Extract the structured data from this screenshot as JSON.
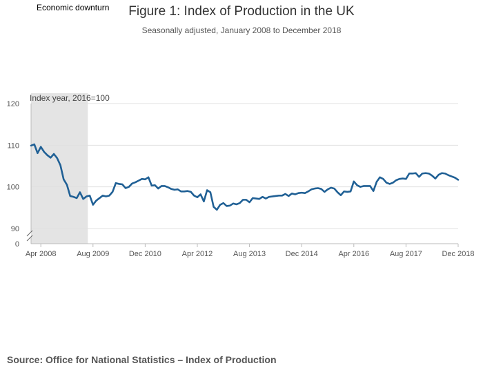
{
  "legend": {
    "label": "Economic downturn",
    "color": "#e4e4e4"
  },
  "source": "Source: Office for National Statistics – Index of Production",
  "chart_data": {
    "type": "line",
    "title": "Figure 1: Index of Production in the UK",
    "subtitle": "Seasonally adjusted, January 2008 to December 2018",
    "ylabel": "Index year, 2016=100",
    "y_ticks": [
      "0",
      "90",
      "100",
      "110",
      "120"
    ],
    "ylim": [
      90,
      120
    ],
    "axis_break": true,
    "grid": true,
    "x_tick_labels": [
      "Apr 2008",
      "Aug 2009",
      "Dec 2010",
      "Apr 2012",
      "Aug 2013",
      "Dec 2014",
      "Apr 2016",
      "Aug 2017",
      "Dec 2018"
    ],
    "x_ticks": [
      "2008-04",
      "2009-08",
      "2010-12",
      "2012-04",
      "2013-08",
      "2014-12",
      "2016-04",
      "2017-08",
      "2018-12"
    ],
    "shaded_regions": [
      {
        "name": "Economic downturn",
        "from": "2008-01",
        "to": "2009-06"
      }
    ],
    "series": [
      {
        "color": "#206095",
        "start": "2008-01",
        "frequency": "monthly",
        "values": [
          109.9,
          110.2,
          108.1,
          109.6,
          108.4,
          107.6,
          107.0,
          107.9,
          106.9,
          105.2,
          101.8,
          100.5,
          97.8,
          97.6,
          97.3,
          98.7,
          97.1,
          97.7,
          97.9,
          95.7,
          96.7,
          97.3,
          97.9,
          97.7,
          97.9,
          98.8,
          100.9,
          100.7,
          100.6,
          99.7,
          100.0,
          100.8,
          101.1,
          101.5,
          101.9,
          101.8,
          102.3,
          100.3,
          100.4,
          99.6,
          100.2,
          100.2,
          99.9,
          99.5,
          99.3,
          99.4,
          98.9,
          98.9,
          99.0,
          98.8,
          97.9,
          97.5,
          98.2,
          96.5,
          99.2,
          98.7,
          95.2,
          94.5,
          95.7,
          96.1,
          95.4,
          95.5,
          96.0,
          95.8,
          96.1,
          96.9,
          96.9,
          96.3,
          97.3,
          97.2,
          97.1,
          97.6,
          97.2,
          97.6,
          97.7,
          97.8,
          97.9,
          97.9,
          98.3,
          97.8,
          98.4,
          98.2,
          98.5,
          98.6,
          98.5,
          98.9,
          99.4,
          99.6,
          99.7,
          99.5,
          98.8,
          99.4,
          99.8,
          99.6,
          98.7,
          98.0,
          98.9,
          98.8,
          98.9,
          101.3,
          100.4,
          100.0,
          100.2,
          100.2,
          100.2,
          99.0,
          101.2,
          102.3,
          101.9,
          101.0,
          100.7,
          101.0,
          101.6,
          101.9,
          102.0,
          101.9,
          103.2,
          103.2,
          103.3,
          102.4,
          103.2,
          103.3,
          103.2,
          102.7,
          102.0,
          102.9,
          103.3,
          103.2,
          102.8,
          102.5,
          102.2,
          101.7
        ]
      }
    ]
  }
}
